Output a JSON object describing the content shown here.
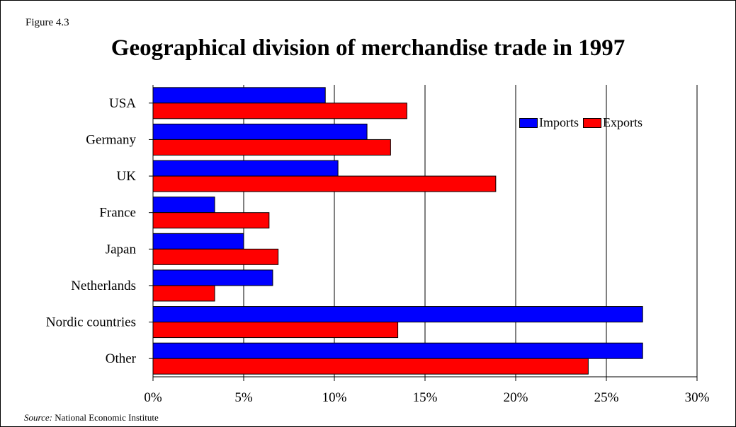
{
  "figure_label": "Figure 4.3",
  "source": {
    "label": "Source:",
    "text": "National Economic Institute"
  },
  "colors": {
    "imports": "#0000ff",
    "exports": "#ff0000",
    "grid": "#000000"
  },
  "chart_data": {
    "type": "bar",
    "orientation": "horizontal",
    "title": "Geographical division of merchandise trade in 1997",
    "xlabel": "",
    "ylabel": "",
    "categories": [
      "USA",
      "Germany",
      "UK",
      "France",
      "Japan",
      "Netherlands",
      "Nordic countries",
      "Other"
    ],
    "series": [
      {
        "name": "Imports",
        "color": "#0000ff",
        "values": [
          9.5,
          11.8,
          10.2,
          3.4,
          5.0,
          6.6,
          27.0,
          27.0
        ]
      },
      {
        "name": "Exports",
        "color": "#ff0000",
        "values": [
          14.0,
          13.1,
          18.9,
          6.4,
          6.9,
          3.4,
          13.5,
          24.0
        ]
      }
    ],
    "xlim": [
      0,
      30
    ],
    "x_ticks": [
      0,
      5,
      10,
      15,
      20,
      25,
      30
    ],
    "x_tick_labels": [
      "0%",
      "5%",
      "10%",
      "15%",
      "20%",
      "25%",
      "30%"
    ],
    "grid": "vertical",
    "legend_position": "top-right"
  }
}
